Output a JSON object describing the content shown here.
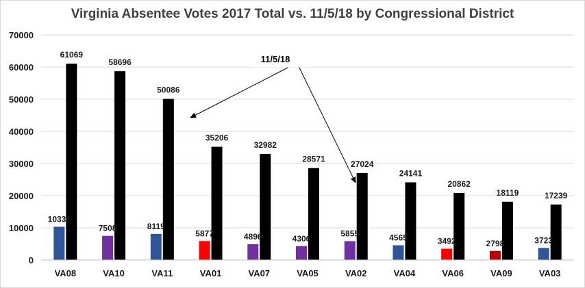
{
  "chart_data": {
    "type": "bar",
    "title": "Virginia Absentee Votes 2017 Total vs. 11/5/18 by Congressional District",
    "xlabel": "",
    "ylabel": "",
    "ylim": [
      0,
      70000
    ],
    "yticks": [
      0,
      10000,
      20000,
      30000,
      40000,
      50000,
      60000,
      70000
    ],
    "grid": true,
    "legend": "none",
    "categories": [
      "VA08",
      "VA10",
      "VA11",
      "VA01",
      "VA07",
      "VA05",
      "VA02",
      "VA04",
      "VA06",
      "VA09",
      "VA03"
    ],
    "series": [
      {
        "values": [
          10331,
          7508,
          8119,
          5877,
          4896,
          4306,
          5855,
          4565,
          3492,
          2798,
          3723
        ],
        "colors": [
          "#2f5597",
          "#7030a0",
          "#2f5597",
          "#ff0000",
          "#7030a0",
          "#7030a0",
          "#7030a0",
          "#2f5597",
          "#ff0000",
          "#c00000",
          "#2f5597"
        ]
      },
      {
        "values": [
          61069,
          58696,
          50086,
          35206,
          32982,
          28571,
          27024,
          24141,
          20862,
          18119,
          17239
        ],
        "colors": [
          "#000000",
          "#000000",
          "#000000",
          "#000000",
          "#000000",
          "#000000",
          "#000000",
          "#000000",
          "#000000",
          "#000000",
          "#000000"
        ]
      }
    ],
    "annotation": {
      "text": "11/5/18",
      "points_to": [
        "VA11",
        "VA02"
      ]
    }
  }
}
